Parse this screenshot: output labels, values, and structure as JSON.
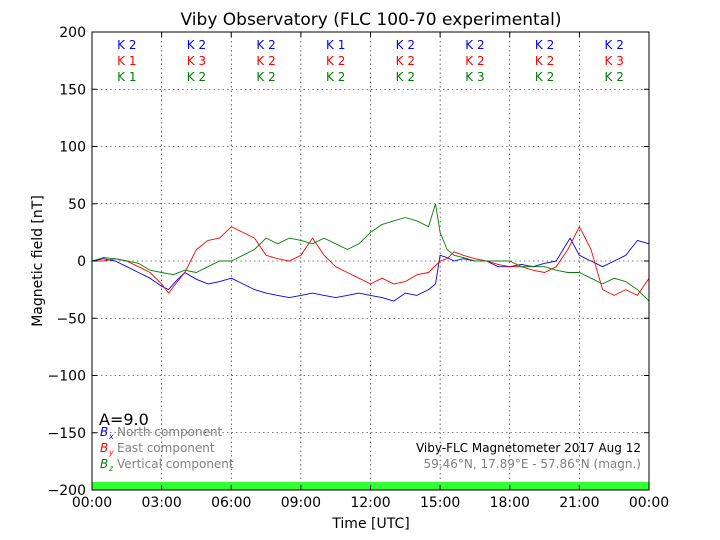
{
  "chart_data": {
    "type": "line",
    "title": "Viby Observatory (FLC 100-70 experimental)",
    "xlabel": "Time [UTC]",
    "ylabel": "Magnetic field [nT]",
    "xlim": [
      0,
      24
    ],
    "ylim": [
      -200,
      200
    ],
    "xticks": [
      0,
      3,
      6,
      9,
      12,
      15,
      18,
      21,
      24
    ],
    "xtick_labels": [
      "00:00",
      "03:00",
      "06:00",
      "09:00",
      "12:00",
      "15:00",
      "18:00",
      "21:00",
      "00:00"
    ],
    "yticks": [
      -200,
      -150,
      -100,
      -50,
      0,
      50,
      100,
      150,
      200
    ],
    "ytick_labels": [
      "−200",
      "−150",
      "−100",
      "−50",
      "0",
      "50",
      "100",
      "150",
      "200"
    ],
    "grid": true,
    "k_index": {
      "centers": [
        1.5,
        4.5,
        7.5,
        10.5,
        13.5,
        16.5,
        19.5,
        22.5
      ],
      "rows": [
        {
          "color": "#0000ff",
          "labels": [
            "K 2",
            "K 2",
            "K 2",
            "K 1",
            "K 2",
            "K 2",
            "K 2",
            "K 2"
          ]
        },
        {
          "color": "#ff0000",
          "labels": [
            "K 1",
            "K 3",
            "K 2",
            "K 2",
            "K 2",
            "K 2",
            "K 2",
            "K 3"
          ]
        },
        {
          "color": "#008000",
          "labels": [
            "K 1",
            "K 2",
            "K 2",
            "K 2",
            "K 2",
            "K 3",
            "K 2",
            "K 2"
          ]
        }
      ]
    },
    "a_index": "A=9.0",
    "status_bar": {
      "from": 0,
      "to": 24,
      "y_from": -200,
      "y_to": -193,
      "color": "#33ff33"
    },
    "legend": {
      "placement": "bottom-left",
      "items": [
        {
          "symbol": "B",
          "sub": "x",
          "text": "North component",
          "color": "#0000ff"
        },
        {
          "symbol": "B",
          "sub": "y",
          "text": "East component",
          "color": "#ff0000"
        },
        {
          "symbol": "B",
          "sub": "z",
          "text": "Vertical component",
          "color": "#008000"
        }
      ]
    },
    "annotations": {
      "line1": "Viby-FLC Magnetometer 2017 Aug 12",
      "line2": "59.46°N, 17.89°E - 57.86°N (magn.)"
    },
    "series": [
      {
        "color": "#0000ff",
        "x": [
          0,
          0.5,
          1,
          1.5,
          2,
          2.5,
          3,
          3.3,
          3.6,
          4,
          4.5,
          5,
          5.5,
          6,
          6.5,
          7,
          7.5,
          8,
          8.5,
          9,
          9.5,
          10,
          10.5,
          11,
          11.5,
          12,
          12.5,
          13,
          13.5,
          14,
          14.5,
          14.8,
          15,
          15.3,
          15.6,
          16,
          16.5,
          17,
          17.5,
          18,
          18.5,
          19,
          19.5,
          20,
          20.3,
          20.6,
          21,
          21.5,
          22,
          22.5,
          23,
          23.5,
          24
        ],
        "y": [
          0,
          2,
          0,
          -5,
          -10,
          -15,
          -22,
          -25,
          -18,
          -10,
          -16,
          -20,
          -18,
          -15,
          -20,
          -25,
          -28,
          -30,
          -32,
          -30,
          -28,
          -30,
          -32,
          -30,
          -28,
          -30,
          -32,
          -35,
          -28,
          -30,
          -25,
          -20,
          5,
          3,
          0,
          2,
          0,
          0,
          -5,
          -5,
          -3,
          -5,
          -2,
          0,
          10,
          20,
          5,
          0,
          -5,
          0,
          5,
          18,
          15
        ]
      },
      {
        "color": "#ff0000",
        "x": [
          0,
          0.5,
          1,
          1.5,
          2,
          2.5,
          3,
          3.3,
          3.6,
          4,
          4.5,
          5,
          5.5,
          6,
          6.5,
          7,
          7.5,
          8,
          8.5,
          9,
          9.5,
          10,
          10.5,
          11,
          11.5,
          12,
          12.5,
          13,
          13.5,
          14,
          14.5,
          15,
          15.3,
          15.6,
          16,
          16.5,
          17,
          17.5,
          18,
          18.5,
          19,
          19.5,
          20,
          20.5,
          21,
          21.5,
          22,
          22.5,
          23,
          23.5,
          24
        ],
        "y": [
          0,
          0,
          2,
          0,
          -5,
          -10,
          -20,
          -28,
          -20,
          -10,
          10,
          18,
          20,
          30,
          25,
          20,
          5,
          2,
          0,
          5,
          20,
          5,
          -5,
          -10,
          -15,
          -20,
          -15,
          -20,
          -18,
          -12,
          -10,
          0,
          2,
          8,
          5,
          2,
          0,
          -3,
          -5,
          -5,
          -8,
          -10,
          -5,
          10,
          30,
          10,
          -25,
          -30,
          -25,
          -30,
          -15
        ]
      },
      {
        "color": "#008000",
        "x": [
          0,
          0.5,
          1,
          1.5,
          2,
          2.5,
          3,
          3.5,
          4,
          4.5,
          5,
          5.5,
          6,
          6.5,
          7,
          7.5,
          8,
          8.5,
          9,
          9.5,
          10,
          10.5,
          11,
          11.5,
          12,
          12.5,
          13,
          13.5,
          14,
          14.5,
          14.8,
          15,
          15.3,
          15.6,
          16,
          16.5,
          17,
          17.5,
          18,
          18.5,
          19,
          19.5,
          20,
          20.5,
          21,
          21.5,
          22,
          22.5,
          23,
          23.5,
          24
        ],
        "y": [
          0,
          3,
          2,
          0,
          -2,
          -8,
          -10,
          -12,
          -8,
          -10,
          -5,
          0,
          0,
          5,
          10,
          20,
          15,
          20,
          18,
          15,
          20,
          15,
          10,
          15,
          25,
          32,
          35,
          38,
          35,
          30,
          50,
          25,
          10,
          5,
          3,
          0,
          0,
          0,
          0,
          -5,
          -5,
          -5,
          -8,
          -10,
          -10,
          -15,
          -20,
          -15,
          -18,
          -25,
          -35
        ]
      }
    ]
  }
}
